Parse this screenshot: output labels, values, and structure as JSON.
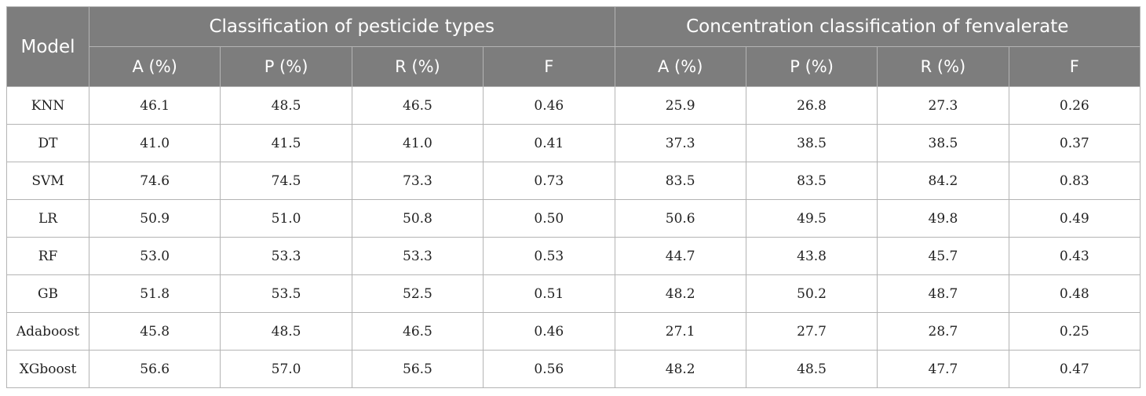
{
  "table": {
    "model_header": "Model",
    "group_headers": [
      "Classification of pesticide types",
      "Concentration classification of fenvalerate"
    ],
    "sub_headers": [
      "A (%)",
      "P (%)",
      "R (%)",
      "F",
      "A (%)",
      "P (%)",
      "R (%)",
      "F"
    ],
    "rows": [
      {
        "model": "KNN",
        "values": [
          "46.1",
          "48.5",
          "46.5",
          "0.46",
          "25.9",
          "26.8",
          "27.3",
          "0.26"
        ]
      },
      {
        "model": "DT",
        "values": [
          "41.0",
          "41.5",
          "41.0",
          "0.41",
          "37.3",
          "38.5",
          "38.5",
          "0.37"
        ]
      },
      {
        "model": "SVM",
        "values": [
          "74.6",
          "74.5",
          "73.3",
          "0.73",
          "83.5",
          "83.5",
          "84.2",
          "0.83"
        ]
      },
      {
        "model": "LR",
        "values": [
          "50.9",
          "51.0",
          "50.8",
          "0.50",
          "50.6",
          "49.5",
          "49.8",
          "0.49"
        ]
      },
      {
        "model": "RF",
        "values": [
          "53.0",
          "53.3",
          "53.3",
          "0.53",
          "44.7",
          "43.8",
          "45.7",
          "0.43"
        ]
      },
      {
        "model": "GB",
        "values": [
          "51.8",
          "53.5",
          "52.5",
          "0.51",
          "48.2",
          "50.2",
          "48.7",
          "0.48"
        ]
      },
      {
        "model": "Adaboost",
        "values": [
          "45.8",
          "48.5",
          "46.5",
          "0.46",
          "27.1",
          "27.7",
          "28.7",
          "0.25"
        ]
      },
      {
        "model": "XGboost",
        "values": [
          "56.6",
          "57.0",
          "56.5",
          "0.56",
          "48.2",
          "48.5",
          "47.7",
          "0.47"
        ]
      }
    ]
  },
  "colors": {
    "header_bg": "#7d7d7d",
    "header_text": "#ffffff",
    "grid_line": "#b4b4b4"
  }
}
